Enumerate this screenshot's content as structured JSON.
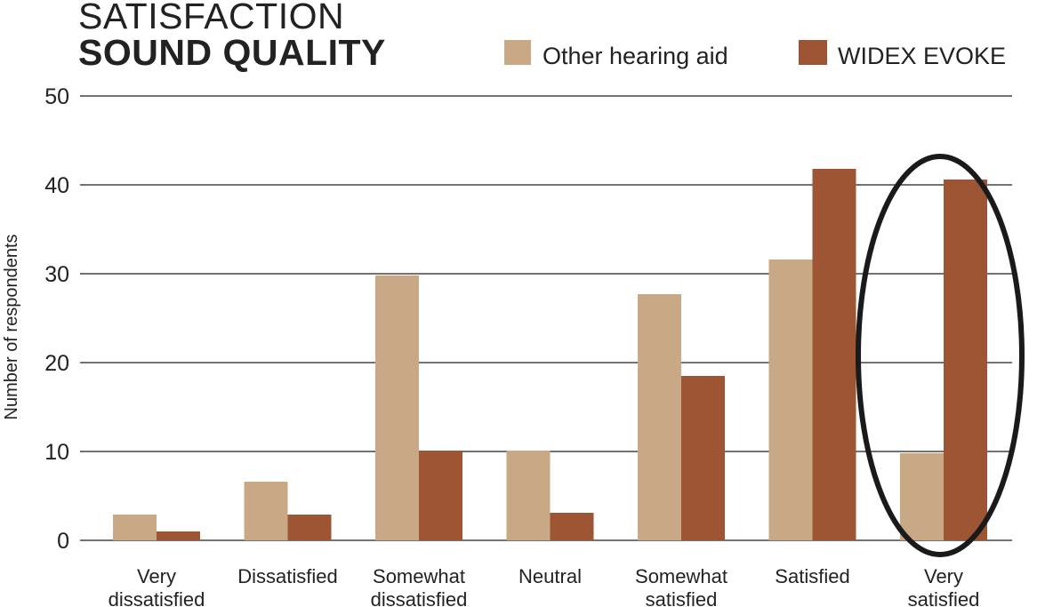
{
  "chart_data": {
    "type": "bar",
    "title": "SATISFACTION",
    "subtitle": "SOUND QUALITY",
    "xlabel": "",
    "ylabel": "Number of respondents",
    "ylim": [
      0,
      50
    ],
    "yticks": [
      0,
      10,
      20,
      30,
      40,
      50
    ],
    "grid": true,
    "legend_position": "top-right",
    "categories": [
      [
        "Very",
        "dissatisfied"
      ],
      [
        "Dissatisfied"
      ],
      [
        "Somewhat",
        "dissatisfied"
      ],
      [
        "Neutral"
      ],
      [
        "Somewhat",
        "satisfied"
      ],
      [
        "Satisfied"
      ],
      [
        "Very",
        "satisfied"
      ]
    ],
    "series": [
      {
        "name": "Other hearing aid",
        "color": "#c9a886",
        "values": [
          2.9,
          6.6,
          29.8,
          10.1,
          27.7,
          31.6,
          9.8
        ]
      },
      {
        "name": "WIDEX EVOKE",
        "color": "#9e5534",
        "values": [
          1.0,
          2.9,
          10.1,
          3.1,
          18.5,
          41.8,
          40.6
        ]
      }
    ],
    "highlight": {
      "category_index": 6,
      "shape": "ellipse",
      "color": "#1a1a1a"
    }
  }
}
